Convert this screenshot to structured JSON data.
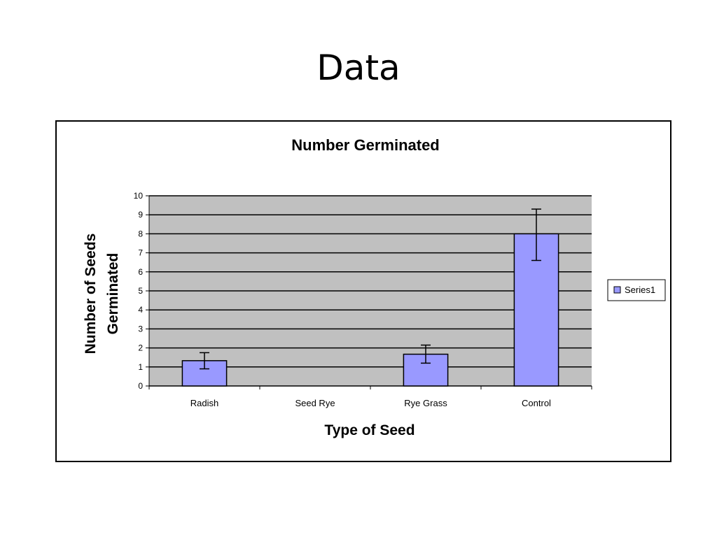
{
  "slide": {
    "title": "Data"
  },
  "chart_data": {
    "type": "bar",
    "title": "Number Germinated",
    "xlabel": "Type of Seed",
    "ylabel_lines": [
      "Number of Seeds",
      "Germinated"
    ],
    "categories": [
      "Radish",
      "Seed Rye",
      "Rye Grass",
      "Control"
    ],
    "series": [
      {
        "name": "Series1",
        "values": [
          1.33,
          0,
          1.67,
          8
        ],
        "error_low": [
          0.9,
          0,
          1.2,
          6.6
        ],
        "error_high": [
          1.75,
          0,
          2.15,
          9.3
        ],
        "color": "#9999ff"
      }
    ],
    "ylim": [
      0,
      10
    ],
    "yticks": [
      0,
      1,
      2,
      3,
      4,
      5,
      6,
      7,
      8,
      9,
      10
    ],
    "grid": true,
    "plot_background": "#c0c0c0",
    "legend_position": "right"
  }
}
